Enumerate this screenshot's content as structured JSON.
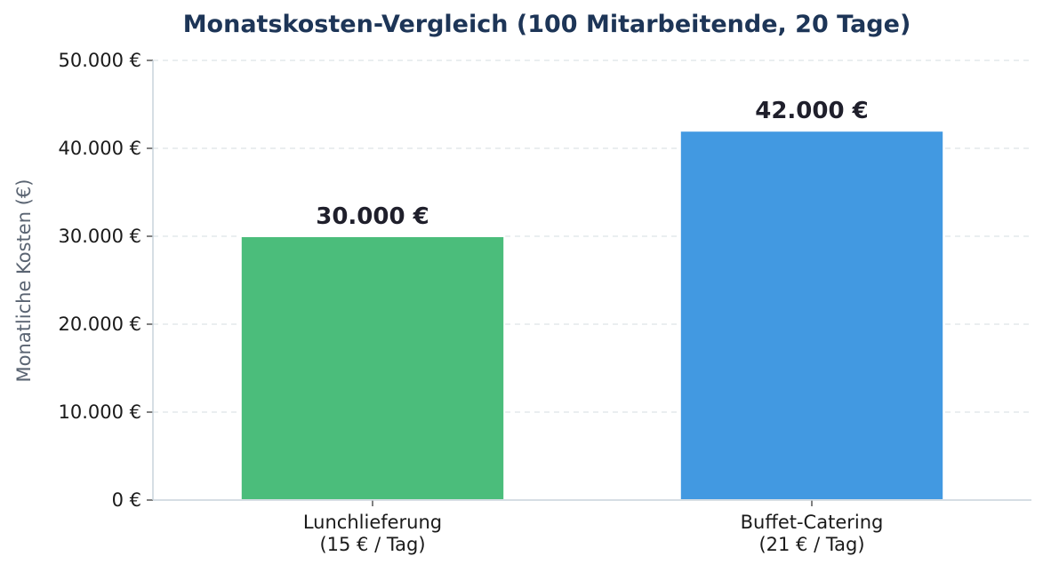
{
  "chart_data": {
    "type": "bar",
    "title": "Monatskosten-Vergleich (100 Mitarbeitende, 20 Tage)",
    "xlabel": "",
    "ylabel": "Monatliche Kosten (€)",
    "categories": [
      [
        "Lunchlieferung",
        "(15 € / Tag)"
      ],
      [
        "Buffet-Catering",
        "(21 € / Tag)"
      ]
    ],
    "values": [
      30000,
      42000
    ],
    "data_labels": [
      "30.000 €",
      "42.000 €"
    ],
    "bar_colors": [
      "#4bbd7b",
      "#4299e1"
    ],
    "ylim": [
      0,
      50000
    ],
    "yticks": [
      0,
      10000,
      20000,
      30000,
      40000,
      50000
    ],
    "ytick_labels": [
      "0 €",
      "10.000 €",
      "20.000 €",
      "30.000 €",
      "40.000 €",
      "50.000 €"
    ],
    "grid": true,
    "grid_color": "#e3e8ec",
    "axis_color": "#c8d4dc",
    "title_color": "#1d3557"
  }
}
